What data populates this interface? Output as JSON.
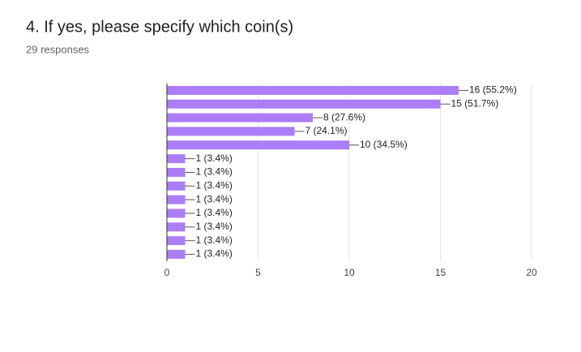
{
  "chart_data": {
    "type": "bar",
    "orientation": "horizontal",
    "title": "4. If yes, please specify which coin(s)",
    "subtitle": "29 responses",
    "categories": [
      null,
      null,
      null,
      null,
      null,
      null,
      null,
      null,
      null,
      null,
      null,
      null,
      null
    ],
    "values": [
      16,
      15,
      8,
      7,
      10,
      1,
      1,
      1,
      1,
      1,
      1,
      1,
      1
    ],
    "value_labels": [
      "16 (55.2%)",
      "15 (51.7%)",
      "8 (27.6%)",
      "7 (24.1%)",
      "10 (34.5%)",
      "1 (3.4%)",
      "1 (3.4%)",
      "1 (3.4%)",
      "1 (3.4%)",
      "1 (3.4%)",
      "1 (3.4%)",
      "1 (3.4%)",
      "1 (3.4%)"
    ],
    "color": "#ab7df6",
    "xlim": [
      0,
      20
    ],
    "xticks": [
      0,
      5,
      10,
      15,
      20
    ],
    "grid": true
  }
}
